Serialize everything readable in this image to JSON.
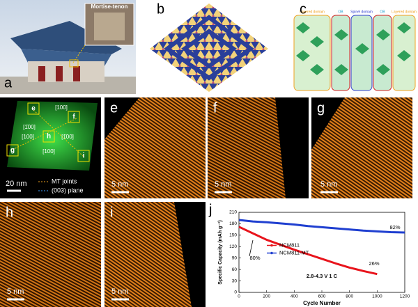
{
  "panels": {
    "a": {
      "label": "a",
      "inset": "Mortise-tenon"
    },
    "b": {
      "label": "b"
    },
    "c": {
      "label": "c",
      "domains": [
        "Layered domain",
        "OB",
        "Spinel domain",
        "OB",
        "Layered domain"
      ]
    },
    "map": {
      "regions": [
        "e",
        "f",
        "h",
        "g",
        "i"
      ],
      "directions": [
        "[100]",
        "[1̄00]",
        "[1̄00]",
        "[100]",
        "[100]"
      ],
      "scale_bar": "20 nm",
      "legend": [
        "MT joints",
        "(003) plane"
      ]
    },
    "e": {
      "label": "e",
      "scale_bar": "5 nm"
    },
    "f": {
      "label": "f",
      "scale_bar": "5 nm"
    },
    "g": {
      "label": "g",
      "scale_bar": "5 nm"
    },
    "h": {
      "label": "h",
      "scale_bar": "5 nm"
    },
    "i": {
      "label": "i",
      "scale_bar": "5 nm"
    },
    "j": {
      "label": "j"
    }
  },
  "chart_data": {
    "type": "line",
    "x_label": "Cycle Number",
    "y_label": "Specific Capacity (mAh g⁻¹)",
    "xlim": [
      0,
      1200
    ],
    "xticks": [
      0,
      200,
      400,
      600,
      800,
      1000,
      1200
    ],
    "ylim": [
      0,
      210
    ],
    "yticks": [
      0,
      30,
      60,
      90,
      120,
      150,
      180,
      210
    ],
    "legend": "center",
    "annotations": [
      "80%",
      "26%",
      "82%",
      "2.8-4.3 V 1 C"
    ],
    "series": [
      {
        "name": "NCM811",
        "color": "#e8141c",
        "x": [
          0,
          100,
          200,
          300,
          400,
          500,
          600,
          700,
          800,
          900,
          1000
        ],
        "values": [
          172,
          155,
          138,
          125,
          112,
          100,
          88,
          76,
          65,
          56,
          48
        ]
      },
      {
        "name": "NCM811-MT",
        "color": "#1f3fd0",
        "x": [
          0,
          100,
          200,
          300,
          400,
          500,
          600,
          700,
          800,
          900,
          1000,
          1100,
          1200
        ],
        "values": [
          190,
          186,
          184,
          181,
          178,
          174,
          171,
          168,
          165,
          162,
          160,
          158,
          157
        ]
      }
    ]
  }
}
